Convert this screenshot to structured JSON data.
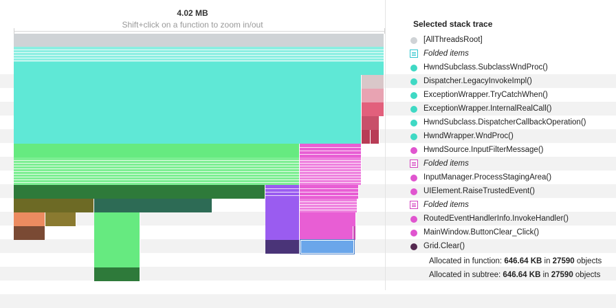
{
  "header": {
    "total": "4.02 MB",
    "hint": "Shift+click on a function to zoom in/out"
  },
  "panel": {
    "title": "Selected stack trace",
    "trace": [
      {
        "label": "[AllThreadsRoot]",
        "kind": "dot",
        "color": "#cfd3d6"
      },
      {
        "label": "Folded items",
        "kind": "folded",
        "color": "#2fc5cf"
      },
      {
        "label": "HwndSubclass.SubclassWndProc()",
        "kind": "dot",
        "color": "#3fd9c4"
      },
      {
        "label": "Dispatcher.LegacyInvokeImpl()",
        "kind": "dot",
        "color": "#3fd9c4"
      },
      {
        "label": "ExceptionWrapper.TryCatchWhen()",
        "kind": "dot",
        "color": "#3fd9c4"
      },
      {
        "label": "ExceptionWrapper.InternalRealCall()",
        "kind": "dot",
        "color": "#3fd9c4"
      },
      {
        "label": "HwndSubclass.DispatcherCallbackOperation()",
        "kind": "dot",
        "color": "#3fd9c4"
      },
      {
        "label": "HwndWrapper.WndProc()",
        "kind": "dot",
        "color": "#3fd9c4"
      },
      {
        "label": "HwndSource.InputFilterMessage()",
        "kind": "dot",
        "color": "#e055cf"
      },
      {
        "label": "Folded items",
        "kind": "folded",
        "color": "#d43fbf"
      },
      {
        "label": "InputManager.ProcessStagingArea()",
        "kind": "dot",
        "color": "#e055cf"
      },
      {
        "label": "UIElement.RaiseTrustedEvent()",
        "kind": "dot",
        "color": "#e055cf"
      },
      {
        "label": "Folded items",
        "kind": "folded",
        "color": "#d43fbf"
      },
      {
        "label": "RoutedEventHandlerInfo.InvokeHandler()",
        "kind": "dot",
        "color": "#e055cf"
      },
      {
        "label": "MainWindow.ButtonClear_Click()",
        "kind": "dot",
        "color": "#e055cf"
      },
      {
        "label": "Grid.Clear()",
        "kind": "dot",
        "color": "#54284f"
      }
    ],
    "stats": {
      "function_prefix": "Allocated in function: ",
      "function_value": "646.64 KB",
      "function_mid": " in ",
      "function_count": "27590",
      "function_suffix": " objects",
      "subtree_prefix": "Allocated in subtree: ",
      "subtree_value": "646.64 KB",
      "subtree_mid": " in ",
      "subtree_count": "27590",
      "subtree_suffix": " objects"
    }
  },
  "colors": {
    "root": "#cfd3d6",
    "cyan": "#5fe8d6",
    "green": "#66ea80",
    "dark_green": "#2e7a3a",
    "pink": "#e85ed4",
    "purple": "#9a5cf0",
    "dark_purple": "#4a3478",
    "olive": "#6d6a25",
    "teal_dark": "#2d6b55",
    "orange": "#ec8b60",
    "brown": "#7a4a34",
    "rose": "#e2607c",
    "blue_sel": "#6aa6ea"
  }
}
